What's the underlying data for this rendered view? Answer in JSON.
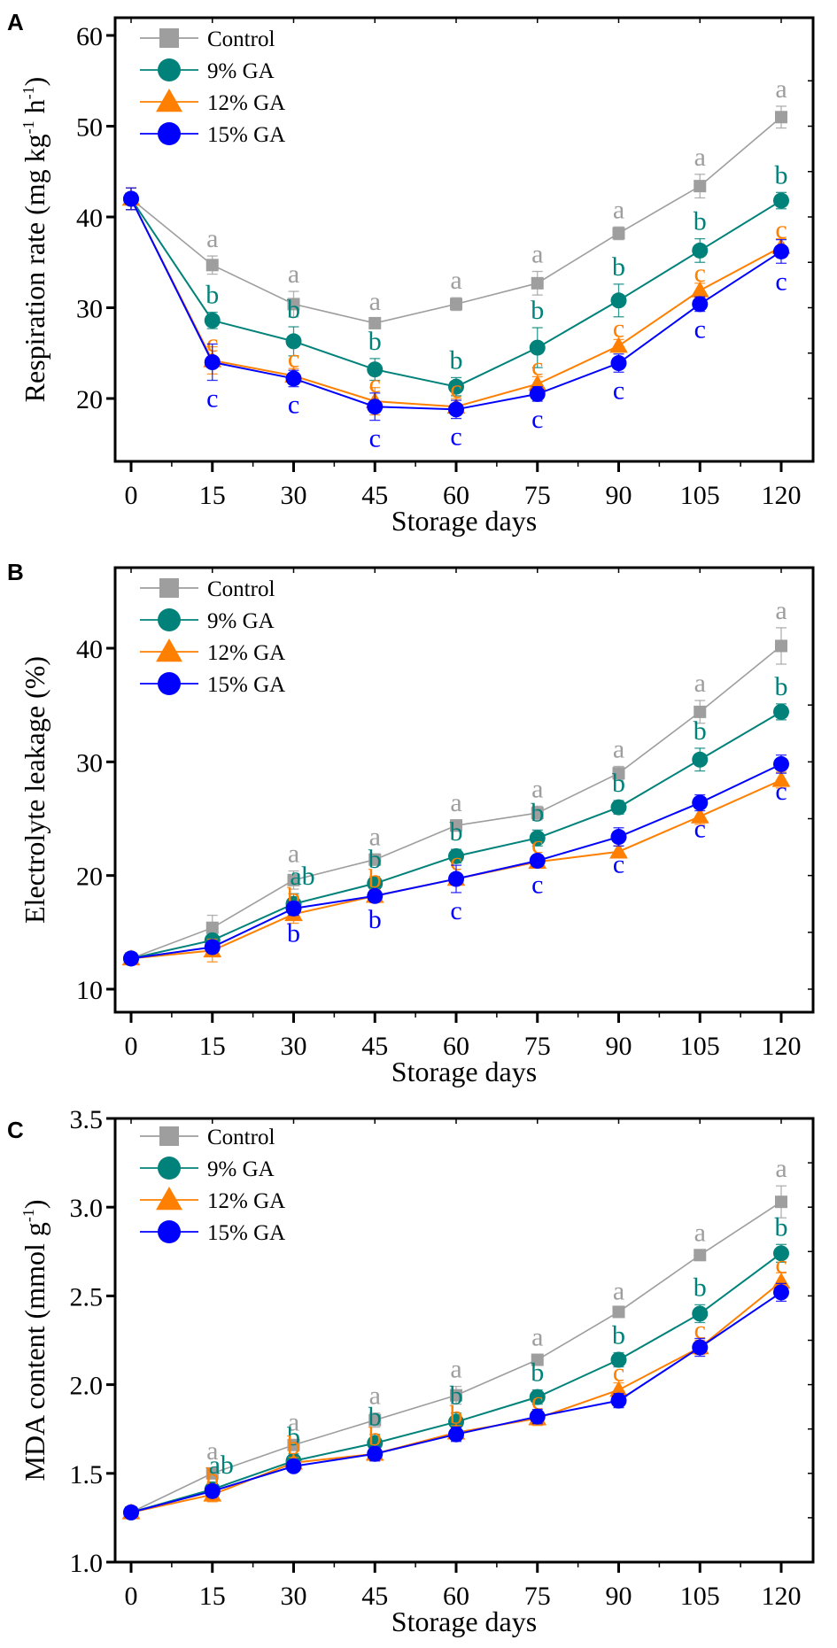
{
  "figure": {
    "series_styles": [
      {
        "name": "Control",
        "color": "#9E9E9E",
        "marker": "square"
      },
      {
        "name": "9% GA",
        "color": "#00827A",
        "marker": "circle"
      },
      {
        "name": "12% GA",
        "color": "#FF7F00",
        "marker": "triangle"
      },
      {
        "name": "15% GA",
        "color": "#0000FF",
        "marker": "circle"
      }
    ]
  },
  "chart_data": [
    {
      "type": "line",
      "panel": "A",
      "title": "",
      "xlabel": "Storage days",
      "ylabel": "Respiration rate (mg kg",
      "ylabel_sup1": "-1",
      "ylabel_mid": " h",
      "ylabel_sup2": "-1",
      "ylabel_end": ")",
      "x": [
        0,
        15,
        30,
        45,
        60,
        75,
        90,
        105,
        120
      ],
      "xticks": [
        "0",
        "15",
        "30",
        "45",
        "60",
        "75",
        "90",
        "105",
        "120"
      ],
      "xlim": [
        -4,
        128
      ],
      "ylim": [
        13,
        62
      ],
      "yticks": [
        20,
        30,
        40,
        50,
        60
      ],
      "ytick_labels": [
        "20",
        "30",
        "40",
        "50",
        "60"
      ],
      "legend": [
        "Control",
        "9% GA",
        "12% GA",
        "15% GA"
      ],
      "legend_position": "top-left",
      "grid": false,
      "series": [
        {
          "name": "Control",
          "values": [
            42.0,
            34.7,
            30.4,
            28.3,
            30.4,
            32.7,
            38.2,
            43.4,
            51.0
          ],
          "errors": [
            1.2,
            1.0,
            1.4,
            0.5,
            0.7,
            1.3,
            0.7,
            1.3,
            1.2
          ],
          "letters": [
            "",
            "a",
            "a",
            "a",
            "a",
            "a",
            "a",
            "a",
            "a"
          ]
        },
        {
          "name": "9% GA",
          "values": [
            42.0,
            28.6,
            26.3,
            23.2,
            21.3,
            25.6,
            30.8,
            36.3,
            41.8
          ],
          "errors": [
            1.2,
            0.9,
            1.6,
            1.2,
            1.0,
            2.2,
            1.8,
            1.3,
            0.9
          ],
          "letters": [
            "",
            "b",
            "b",
            "b",
            "b",
            "b",
            "b",
            "b",
            "b"
          ]
        },
        {
          "name": "12% GA",
          "values": [
            42.0,
            24.2,
            22.5,
            19.7,
            19.1,
            21.6,
            25.8,
            31.9,
            36.7
          ],
          "errors": [
            1.2,
            1.5,
            0.8,
            1.5,
            0.9,
            0.8,
            0.7,
            0.8,
            0.9
          ],
          "letters": [
            "",
            "c",
            "c",
            "c",
            "c",
            "c",
            "c",
            "c",
            "c"
          ]
        },
        {
          "name": "15% GA",
          "values": [
            42.0,
            24.0,
            22.2,
            19.1,
            18.8,
            20.5,
            23.9,
            30.4,
            36.2
          ],
          "errors": [
            1.2,
            2.0,
            0.9,
            1.5,
            1.0,
            0.8,
            1.0,
            0.8,
            1.3
          ],
          "letters": [
            "",
            "c",
            "c",
            "c",
            "c",
            "c",
            "c",
            "c",
            "c"
          ]
        }
      ]
    },
    {
      "type": "line",
      "panel": "B",
      "title": "",
      "xlabel": "Storage days",
      "ylabel": "Electrolyte leakage (%)",
      "x": [
        0,
        15,
        30,
        45,
        60,
        75,
        90,
        105,
        120
      ],
      "xticks": [
        "0",
        "15",
        "30",
        "45",
        "60",
        "75",
        "90",
        "105",
        "120"
      ],
      "xlim": [
        -4,
        128
      ],
      "ylim": [
        8,
        47
      ],
      "yticks": [
        10,
        20,
        30,
        40
      ],
      "ytick_labels": [
        "10",
        "20",
        "30",
        "40"
      ],
      "legend": [
        "Control",
        "9% GA",
        "12% GA",
        "15% GA"
      ],
      "legend_position": "top-left",
      "grid": false,
      "series": [
        {
          "name": "Control",
          "values": [
            12.7,
            15.4,
            19.6,
            21.4,
            24.4,
            25.5,
            29.0,
            34.4,
            40.2
          ],
          "errors": [
            0.3,
            1.1,
            0.8,
            0.5,
            0.5,
            0.6,
            0.6,
            1.0,
            1.6
          ],
          "letters": [
            "",
            "",
            "a",
            "a",
            "a",
            "a",
            "a",
            "a",
            "a"
          ]
        },
        {
          "name": "9% GA",
          "values": [
            12.7,
            14.3,
            17.5,
            19.3,
            21.7,
            23.3,
            26.0,
            30.2,
            34.4
          ],
          "errors": [
            0.3,
            0.5,
            0.9,
            0.6,
            0.6,
            0.7,
            0.6,
            1.0,
            0.7
          ],
          "letters": [
            "",
            "",
            "ab",
            "b",
            "b",
            "b",
            "b",
            "b",
            "b"
          ]
        },
        {
          "name": "12% GA",
          "values": [
            12.7,
            13.4,
            16.6,
            18.2,
            19.7,
            21.2,
            22.1,
            25.2,
            28.4
          ],
          "errors": [
            0.3,
            1.0,
            0.8,
            0.6,
            0.5,
            0.4,
            0.5,
            0.7,
            0.7
          ],
          "letters": [
            "",
            "",
            "b",
            "b",
            "c",
            "c",
            "c",
            "c",
            "c"
          ]
        },
        {
          "name": "15% GA",
          "values": [
            12.7,
            13.7,
            17.1,
            18.2,
            19.7,
            21.3,
            23.4,
            26.4,
            29.8
          ],
          "errors": [
            0.3,
            0.5,
            0.6,
            0.5,
            1.2,
            0.5,
            0.8,
            0.7,
            0.8
          ],
          "letters": [
            "",
            "",
            "b",
            "b",
            "c",
            "c",
            "c",
            "c",
            "c"
          ]
        }
      ]
    },
    {
      "type": "line",
      "panel": "C",
      "title": "",
      "xlabel": "Storage days",
      "ylabel": "MDA content (mmol g",
      "ylabel_sup1": "-1",
      "ylabel_end": ")",
      "x": [
        0,
        15,
        30,
        45,
        60,
        75,
        90,
        105,
        120
      ],
      "xticks": [
        "0",
        "15",
        "30",
        "45",
        "60",
        "75",
        "90",
        "105",
        "120"
      ],
      "xlim": [
        -4,
        128
      ],
      "ylim": [
        1.0,
        3.5
      ],
      "yticks": [
        1.0,
        1.5,
        2.0,
        2.5,
        3.0,
        3.5
      ],
      "ytick_labels": [
        "1.0",
        "1.5",
        "2.0",
        "2.5",
        "3.0",
        "3.5"
      ],
      "legend": [
        "Control",
        "9% GA",
        "12% GA",
        "15% GA"
      ],
      "legend_position": "top-left",
      "grid": false,
      "series": [
        {
          "name": "Control",
          "values": [
            1.28,
            1.5,
            1.66,
            1.8,
            1.94,
            2.14,
            2.41,
            2.73,
            3.03
          ],
          "errors": [
            0.03,
            0.03,
            0.03,
            0.04,
            0.05,
            0.03,
            0.02,
            0.03,
            0.09
          ],
          "letters": [
            "",
            "a",
            "a",
            "a",
            "a",
            "a",
            "a",
            "a",
            "a"
          ]
        },
        {
          "name": "9% GA",
          "values": [
            1.28,
            1.41,
            1.57,
            1.67,
            1.79,
            1.93,
            2.14,
            2.4,
            2.74
          ],
          "errors": [
            0.03,
            0.04,
            0.04,
            0.05,
            0.05,
            0.04,
            0.04,
            0.05,
            0.05
          ],
          "letters": [
            "",
            "ab",
            "b",
            "b",
            "b",
            "b",
            "b",
            "b",
            "b"
          ]
        },
        {
          "name": "12% GA",
          "values": [
            1.28,
            1.38,
            1.56,
            1.61,
            1.73,
            1.81,
            1.97,
            2.21,
            2.58
          ],
          "errors": [
            0.03,
            0.04,
            0.03,
            0.04,
            0.04,
            0.04,
            0.04,
            0.04,
            0.05
          ],
          "letters": [
            "",
            "b",
            "b",
            "b",
            "b",
            "c",
            "c",
            "c",
            "c"
          ]
        },
        {
          "name": "15% GA",
          "values": [
            1.28,
            1.4,
            1.54,
            1.61,
            1.72,
            1.82,
            1.91,
            2.21,
            2.52
          ],
          "errors": [
            0.03,
            0.03,
            0.03,
            0.04,
            0.04,
            0.04,
            0.04,
            0.05,
            0.05
          ],
          "letters": [
            "",
            "",
            "",
            "",
            "",
            "",
            "",
            "",
            ""
          ]
        }
      ]
    }
  ]
}
